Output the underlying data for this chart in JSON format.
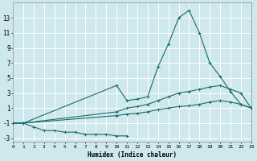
{
  "xlabel": "Humidex (Indice chaleur)",
  "background_color": "#cee8ed",
  "grid_color": "#ffffff",
  "line_color": "#1a6b6b",
  "x_values": [
    0,
    1,
    2,
    3,
    4,
    5,
    6,
    7,
    8,
    9,
    10,
    11,
    12,
    13,
    14,
    15,
    16,
    17,
    18,
    19,
    20,
    21,
    22,
    23
  ],
  "line_peak": [
    -1,
    -1,
    null,
    null,
    null,
    null,
    null,
    null,
    null,
    null,
    4.0,
    2.0,
    2.2,
    2.5,
    6.5,
    9.5,
    13.0,
    14.0,
    11.0,
    7.0,
    5.2,
    3.2,
    1.5,
    1.0
  ],
  "line_mid": [
    -1,
    -1,
    null,
    null,
    null,
    null,
    null,
    null,
    null,
    null,
    0.5,
    1.0,
    1.2,
    1.5,
    2.0,
    2.5,
    3.0,
    3.2,
    3.5,
    3.8,
    4.0,
    3.5,
    3.0,
    1.0
  ],
  "line_low": [
    -1,
    -1,
    -1.5,
    -2.0,
    -2.0,
    -2.2,
    -2.2,
    -2.5,
    -2.5,
    -2.5,
    -2.7,
    -2.7,
    null,
    null,
    null,
    null,
    null,
    null,
    null,
    null,
    null,
    null,
    null,
    null
  ],
  "line_bottom": [
    -1,
    -1,
    null,
    null,
    null,
    null,
    null,
    null,
    null,
    null,
    0.0,
    0.2,
    0.3,
    0.5,
    0.8,
    1.0,
    1.2,
    1.3,
    1.5,
    1.8,
    2.0,
    1.8,
    1.5,
    1.0
  ],
  "ylim": [
    -3.5,
    15
  ],
  "yticks": [
    -3,
    -1,
    1,
    3,
    5,
    7,
    9,
    11,
    13
  ],
  "xlim": [
    0,
    23
  ]
}
